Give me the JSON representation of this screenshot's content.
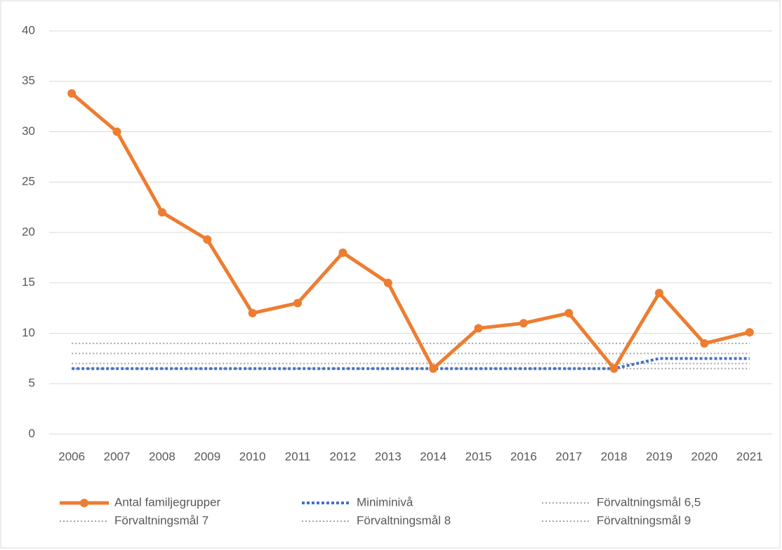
{
  "chart_data": {
    "type": "line",
    "categories": [
      "2006",
      "2007",
      "2008",
      "2009",
      "2010",
      "2011",
      "2012",
      "2013",
      "2014",
      "2015",
      "2016",
      "2017",
      "2018",
      "2019",
      "2020",
      "2021"
    ],
    "series": [
      {
        "name": "Antal familjegrupper",
        "color": "#ed7d31",
        "style": "solid",
        "markers": true,
        "values": [
          33.8,
          30,
          22,
          19.3,
          12,
          13,
          18,
          15,
          6.5,
          10.5,
          11,
          12,
          6.5,
          14,
          9,
          10.1
        ]
      },
      {
        "name": "Miniminivå",
        "color": "#4472c4",
        "style": "dashed",
        "markers": false,
        "values": [
          6.5,
          6.5,
          6.5,
          6.5,
          6.5,
          6.5,
          6.5,
          6.5,
          6.5,
          6.5,
          6.5,
          6.5,
          6.5,
          7.5,
          7.5,
          7.5
        ]
      },
      {
        "name": "Förvaltningsmål 6,5",
        "color": "#a5a5a5",
        "style": "dotted",
        "markers": false,
        "values": [
          6.5,
          6.5,
          6.5,
          6.5,
          6.5,
          6.5,
          6.5,
          6.5,
          6.5,
          6.5,
          6.5,
          6.5,
          6.5,
          6.5,
          6.5,
          6.5
        ]
      },
      {
        "name": "Förvaltningsmål 7",
        "color": "#a5a5a5",
        "style": "dotted",
        "markers": false,
        "values": [
          7,
          7,
          7,
          7,
          7,
          7,
          7,
          7,
          7,
          7,
          7,
          7,
          7,
          7,
          7,
          7
        ]
      },
      {
        "name": "Förvaltningsmål 8",
        "color": "#a5a5a5",
        "style": "dotted",
        "markers": false,
        "values": [
          8,
          8,
          8,
          8,
          8,
          8,
          8,
          8,
          8,
          8,
          8,
          8,
          8,
          8,
          8,
          8
        ]
      },
      {
        "name": "Förvaltningsmål 9",
        "color": "#a5a5a5",
        "style": "dotted",
        "markers": false,
        "values": [
          9,
          9,
          9,
          9,
          9,
          9,
          9,
          9,
          9,
          9,
          9,
          9,
          9,
          9,
          9,
          9
        ]
      }
    ],
    "ylim": [
      0,
      40
    ],
    "yticks": [
      0,
      5,
      10,
      15,
      20,
      25,
      30,
      35,
      40
    ],
    "grid": true,
    "legend": "bottom"
  }
}
